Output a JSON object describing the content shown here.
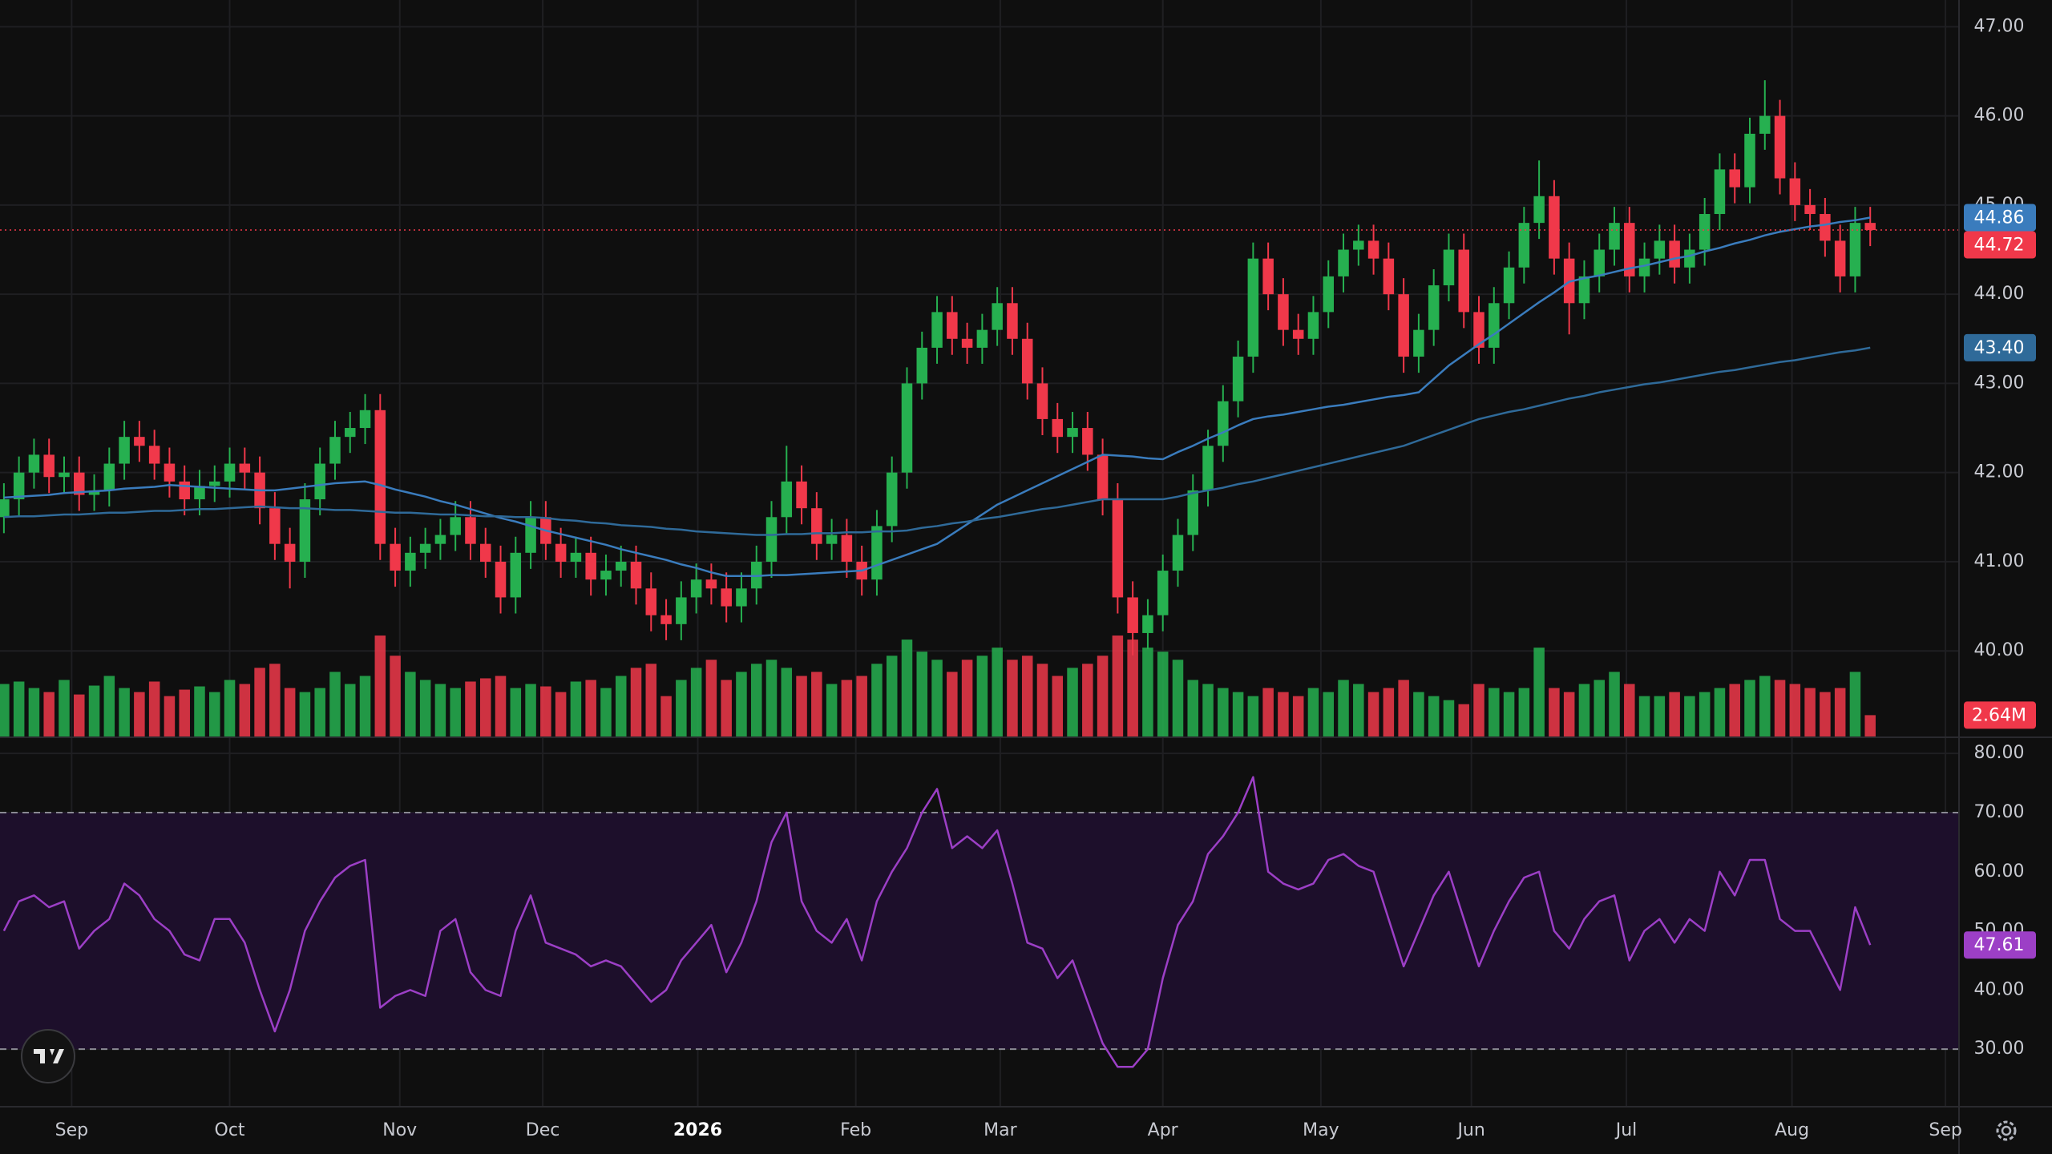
{
  "chart_data": [
    {
      "type": "candlestick",
      "up_color": "#26b050",
      "down_color": "#f0384a",
      "ylim": [
        39.04,
        47.3
      ],
      "yticks": [
        {
          "value": 40,
          "label": "40.00"
        },
        {
          "value": 41,
          "label": "41.00"
        },
        {
          "value": 42,
          "label": "42.00"
        },
        {
          "value": 43,
          "label": "43.00"
        },
        {
          "value": 44,
          "label": "44.00"
        },
        {
          "value": 45,
          "label": "45.00"
        },
        {
          "value": 46,
          "label": "46.00"
        },
        {
          "value": 47,
          "label": "47.00"
        }
      ],
      "grid": true,
      "last_label": "44.72",
      "open": [
        41.5,
        41.7,
        42,
        42.2,
        41.95,
        42,
        41.75,
        41.8,
        42.1,
        42.4,
        42.3,
        42.1,
        41.9,
        41.7,
        41.85,
        41.9,
        42.1,
        42,
        41.6,
        41.2,
        41,
        41.7,
        42.1,
        42.4,
        42.5,
        42.7,
        41.2,
        40.9,
        41.1,
        41.2,
        41.3,
        41.5,
        41.2,
        41,
        40.6,
        41.1,
        41.5,
        41.2,
        41,
        41.1,
        40.8,
        40.9,
        41,
        40.7,
        40.4,
        40.3,
        40.6,
        40.8,
        40.7,
        40.5,
        40.7,
        41,
        41.5,
        41.9,
        41.6,
        41.2,
        41.3,
        41,
        40.8,
        41.4,
        42,
        43,
        43.4,
        43.8,
        43.5,
        43.4,
        43.6,
        43.9,
        43.5,
        43,
        42.6,
        42.4,
        42.5,
        42.2,
        41.7,
        40.6,
        40.2,
        40.4,
        40.9,
        41.3,
        41.8,
        42.3,
        42.8,
        43.3,
        44.4,
        44,
        43.6,
        43.5,
        43.8,
        44.2,
        44.5,
        44.6,
        44.4,
        44,
        43.3,
        43.6,
        44.1,
        44.5,
        43.8,
        43.4,
        43.9,
        44.3,
        44.8,
        45.1,
        44.4,
        43.9,
        44.2,
        44.5,
        44.8,
        44.2,
        44.4,
        44.6,
        44.3,
        44.5,
        44.9,
        45.4,
        45.2,
        45.8,
        46,
        45.3,
        45,
        44.9,
        44.6,
        44.2,
        44.8
      ],
      "high": [
        41.88,
        42.18,
        42.38,
        42.38,
        42.18,
        42.18,
        41.98,
        42.28,
        42.58,
        42.58,
        42.48,
        42.28,
        42.08,
        42.03,
        42.08,
        42.28,
        42.28,
        42.18,
        41.78,
        41.38,
        41.88,
        42.28,
        42.58,
        42.68,
        42.88,
        42.88,
        41.38,
        41.28,
        41.38,
        41.48,
        41.68,
        41.68,
        41.38,
        41.18,
        41.28,
        41.68,
        41.68,
        41.38,
        41.28,
        41.28,
        41.08,
        41.18,
        41.18,
        40.88,
        40.58,
        40.78,
        40.98,
        40.98,
        40.88,
        40.88,
        41.18,
        41.68,
        42.3,
        42.08,
        41.78,
        41.48,
        41.48,
        41.18,
        41.58,
        42.18,
        43.18,
        43.58,
        43.98,
        43.98,
        43.68,
        43.78,
        44.08,
        44.08,
        43.68,
        43.18,
        42.78,
        42.68,
        42.68,
        42.38,
        41.88,
        40.78,
        40.58,
        41.08,
        41.48,
        41.98,
        42.48,
        42.98,
        43.48,
        44.58,
        44.58,
        44.18,
        43.78,
        43.98,
        44.38,
        44.68,
        44.78,
        44.78,
        44.58,
        44.18,
        43.78,
        44.28,
        44.68,
        44.68,
        43.98,
        44.08,
        44.48,
        44.98,
        45.5,
        45.28,
        44.58,
        44.38,
        44.68,
        44.98,
        44.98,
        44.58,
        44.78,
        44.78,
        44.68,
        45.08,
        45.58,
        45.58,
        45.98,
        46.4,
        46.18,
        45.48,
        45.18,
        45.08,
        44.78,
        44.98,
        44.98
      ],
      "low": [
        41.32,
        41.52,
        41.82,
        41.77,
        41.77,
        41.57,
        41.57,
        41.62,
        41.92,
        42.12,
        41.92,
        41.72,
        41.52,
        41.52,
        41.67,
        41.72,
        41.82,
        41.42,
        41.02,
        40.7,
        40.82,
        41.52,
        41.92,
        42.22,
        42.32,
        41.02,
        40.72,
        40.72,
        40.92,
        41.02,
        41.12,
        41.02,
        40.82,
        40.42,
        40.42,
        40.92,
        41.02,
        40.82,
        40.82,
        40.62,
        40.62,
        40.72,
        40.52,
        40.22,
        40.12,
        40.12,
        40.42,
        40.52,
        40.32,
        40.32,
        40.52,
        40.82,
        41.32,
        41.42,
        41.02,
        41.02,
        40.82,
        40.62,
        40.62,
        41.22,
        41.82,
        42.82,
        43.22,
        43.32,
        43.22,
        43.22,
        43.42,
        43.32,
        42.82,
        42.42,
        42.22,
        42.22,
        42.02,
        41.52,
        40.42,
        39.95,
        40.02,
        40.22,
        40.72,
        41.12,
        41.62,
        42.12,
        42.62,
        43.12,
        43.82,
        43.42,
        43.32,
        43.32,
        43.62,
        44.02,
        44.32,
        44.22,
        43.82,
        43.12,
        43.12,
        43.42,
        43.92,
        43.62,
        43.22,
        43.22,
        43.72,
        44.12,
        44.62,
        44.22,
        43.55,
        43.72,
        44.02,
        44.32,
        44.02,
        44.02,
        44.22,
        44.12,
        44.12,
        44.32,
        44.72,
        45.02,
        45.02,
        45.62,
        45.12,
        44.82,
        44.72,
        44.42,
        44.02,
        44.02,
        44.54
      ],
      "close": [
        41.7,
        42,
        42.2,
        41.95,
        42,
        41.75,
        41.8,
        42.1,
        42.4,
        42.3,
        42.1,
        41.9,
        41.7,
        41.85,
        41.9,
        42.1,
        42,
        41.6,
        41.2,
        41,
        41.7,
        42.1,
        42.4,
        42.5,
        42.7,
        41.2,
        40.9,
        41.1,
        41.2,
        41.3,
        41.5,
        41.2,
        41,
        40.6,
        41.1,
        41.5,
        41.2,
        41,
        41.1,
        40.8,
        40.9,
        41,
        40.7,
        40.4,
        40.3,
        40.6,
        40.8,
        40.7,
        40.5,
        40.7,
        41,
        41.5,
        41.9,
        41.6,
        41.2,
        41.3,
        41,
        40.8,
        41.4,
        42,
        43,
        43.4,
        43.8,
        43.5,
        43.4,
        43.6,
        43.9,
        43.5,
        43,
        42.6,
        42.4,
        42.5,
        42.2,
        41.7,
        40.6,
        40.2,
        40.4,
        40.9,
        41.3,
        41.8,
        42.3,
        42.8,
        43.3,
        44.4,
        44,
        43.6,
        43.5,
        43.8,
        44.2,
        44.5,
        44.6,
        44.4,
        44,
        43.3,
        43.6,
        44.1,
        44.5,
        43.8,
        43.4,
        43.9,
        44.3,
        44.8,
        45.1,
        44.4,
        43.9,
        44.2,
        44.5,
        44.8,
        44.2,
        44.4,
        44.6,
        44.3,
        44.5,
        44.9,
        45.4,
        45.2,
        45.8,
        46,
        45.3,
        45,
        44.9,
        44.6,
        44.2,
        44.8,
        44.72
      ],
      "series": [
        {
          "color": "#3a7cbd",
          "last_label": "44.86",
          "values": [
            41.72,
            41.73,
            41.74,
            41.75,
            41.77,
            41.78,
            41.79,
            41.8,
            41.82,
            41.83,
            41.84,
            41.86,
            41.85,
            41.84,
            41.83,
            41.82,
            41.81,
            41.8,
            41.8,
            41.82,
            41.84,
            41.86,
            41.88,
            41.89,
            41.9,
            41.86,
            41.81,
            41.77,
            41.73,
            41.68,
            41.64,
            41.59,
            41.54,
            41.49,
            41.45,
            41.4,
            41.35,
            41.31,
            41.27,
            41.23,
            41.19,
            41.14,
            41.1,
            41.06,
            41.02,
            40.97,
            40.93,
            40.88,
            40.84,
            40.84,
            40.84,
            40.85,
            40.85,
            40.86,
            40.87,
            40.88,
            40.89,
            40.9,
            40.96,
            41.02,
            41.08,
            41.14,
            41.2,
            41.31,
            41.42,
            41.53,
            41.64,
            41.72,
            41.8,
            41.88,
            41.96,
            42.04,
            42.12,
            42.2,
            42.19,
            42.18,
            42.16,
            42.15,
            42.23,
            42.3,
            42.38,
            42.45,
            42.53,
            42.6,
            42.63,
            42.65,
            42.68,
            42.71,
            42.74,
            42.76,
            42.79,
            42.82,
            42.85,
            42.87,
            42.9,
            43.05,
            43.2,
            43.32,
            43.44,
            43.55,
            43.67,
            43.79,
            43.91,
            44.02,
            44.14,
            44.18,
            44.21,
            44.25,
            44.29,
            44.32,
            44.36,
            44.4,
            44.43,
            44.48,
            44.52,
            44.57,
            44.61,
            44.66,
            44.7,
            44.73,
            44.76,
            44.78,
            44.81,
            44.83,
            44.86
          ]
        },
        {
          "color": "#2f6a99",
          "last_label": "43.40",
          "values": [
            41.5,
            41.51,
            41.51,
            41.52,
            41.53,
            41.53,
            41.54,
            41.55,
            41.55,
            41.56,
            41.57,
            41.57,
            41.58,
            41.59,
            41.59,
            41.6,
            41.61,
            41.62,
            41.61,
            41.6,
            41.6,
            41.59,
            41.58,
            41.58,
            41.57,
            41.56,
            41.55,
            41.55,
            41.54,
            41.53,
            41.53,
            41.52,
            41.51,
            41.51,
            41.5,
            41.5,
            41.49,
            41.47,
            41.46,
            41.44,
            41.43,
            41.41,
            41.4,
            41.39,
            41.37,
            41.36,
            41.34,
            41.33,
            41.32,
            41.31,
            41.3,
            41.3,
            41.31,
            41.31,
            41.32,
            41.32,
            41.33,
            41.33,
            41.34,
            41.34,
            41.35,
            41.38,
            41.4,
            41.43,
            41.45,
            41.48,
            41.5,
            41.53,
            41.56,
            41.59,
            41.61,
            41.64,
            41.67,
            41.7,
            41.7,
            41.7,
            41.7,
            41.7,
            41.73,
            41.77,
            41.8,
            41.83,
            41.87,
            41.9,
            41.94,
            41.98,
            42.02,
            42.06,
            42.1,
            42.14,
            42.18,
            42.22,
            42.26,
            42.3,
            42.36,
            42.42,
            42.48,
            42.54,
            42.6,
            42.64,
            42.68,
            42.71,
            42.75,
            42.79,
            42.83,
            42.86,
            42.9,
            42.93,
            42.96,
            42.99,
            43.01,
            43.04,
            43.07,
            43.1,
            43.13,
            43.15,
            43.18,
            43.21,
            43.24,
            43.26,
            43.29,
            43.32,
            43.35,
            43.37,
            43.4
          ]
        }
      ],
      "volume": {
        "vlim": [
          0,
          13
        ],
        "last_label": "2.64M",
        "values": [
          6.5,
          6.8,
          6,
          5.5,
          7,
          5.2,
          6.3,
          7.5,
          6,
          5.5,
          6.8,
          5,
          5.8,
          6.2,
          5.5,
          7,
          6.5,
          8.5,
          9,
          6,
          5.5,
          6,
          8,
          6.5,
          7.5,
          12.5,
          10,
          8,
          7,
          6.5,
          6,
          6.8,
          7.2,
          7.5,
          6,
          6.5,
          6.2,
          5.5,
          6.8,
          7,
          6,
          7.5,
          8.5,
          9,
          5,
          7,
          8.5,
          9.5,
          7,
          8,
          9,
          9.5,
          8.5,
          7.5,
          8,
          6.5,
          7,
          7.5,
          9,
          10,
          12,
          10.5,
          9.5,
          8,
          9.5,
          10,
          11,
          9.5,
          10,
          9,
          7.5,
          8.5,
          9,
          10,
          12.5,
          12,
          11,
          10.5,
          9.5,
          7,
          6.5,
          6,
          5.5,
          5,
          6,
          5.5,
          5,
          6,
          5.5,
          7,
          6.5,
          5.5,
          6,
          7,
          5.5,
          5,
          4.5,
          4,
          6.5,
          6,
          5.5,
          6,
          11,
          6,
          5.5,
          6.5,
          7,
          8,
          6.5,
          5,
          5,
          5.5,
          5,
          5.5,
          6,
          6.5,
          7,
          7.5,
          7,
          6.5,
          6,
          5.5,
          6,
          8,
          2.64
        ]
      }
    },
    {
      "type": "line",
      "color": "#9c3fc6",
      "band_color": "#1d0f2b",
      "bands": [
        30,
        70
      ],
      "ylim": [
        20.4,
        82.6
      ],
      "yticks": [
        {
          "value": 30,
          "label": "30.00"
        },
        {
          "value": 40,
          "label": "40.00"
        },
        {
          "value": 50,
          "label": "50.00"
        },
        {
          "value": 60,
          "label": "60.00"
        },
        {
          "value": 70,
          "label": "70.00"
        },
        {
          "value": 80,
          "label": "80.00"
        }
      ],
      "last_label": "47.61",
      "values": [
        50,
        55,
        56,
        54,
        55,
        47,
        50,
        52,
        58,
        56,
        52,
        50,
        46,
        45,
        52,
        52,
        48,
        40,
        33,
        40,
        50,
        55,
        59,
        61,
        62,
        37,
        39,
        40,
        39,
        50,
        52,
        43,
        40,
        39,
        50,
        56,
        48,
        47,
        46,
        44,
        45,
        44,
        41,
        38,
        40,
        45,
        48,
        51,
        43,
        48,
        55,
        65,
        70,
        55,
        50,
        48,
        52,
        45,
        55,
        60,
        64,
        70,
        74,
        64,
        66,
        64,
        67,
        58,
        48,
        47,
        42,
        45,
        38,
        31,
        27,
        27,
        30,
        42,
        51,
        55,
        63,
        66,
        70,
        76,
        60,
        58,
        57,
        58,
        62,
        63,
        61,
        60,
        52,
        44,
        50,
        56,
        60,
        52,
        44,
        50,
        55,
        59,
        60,
        50,
        47,
        52,
        55,
        56,
        45,
        50,
        52,
        48,
        52,
        50,
        60,
        56,
        62,
        62,
        52,
        50,
        50,
        45,
        40,
        54,
        47.61
      ],
      "xlim": [
        -0.26,
        129.9
      ],
      "xticks": [
        {
          "value": 4.5,
          "label": "Sep"
        },
        {
          "value": 15,
          "label": "Oct"
        },
        {
          "value": 26.3,
          "label": "Nov"
        },
        {
          "value": 35.8,
          "label": "Dec"
        },
        {
          "value": 46.1,
          "label": "2026"
        },
        {
          "value": 56.6,
          "label": "Feb"
        },
        {
          "value": 66.2,
          "label": "Mar"
        },
        {
          "value": 77,
          "label": "Apr"
        },
        {
          "value": 87.5,
          "label": "May"
        },
        {
          "value": 97.5,
          "label": "Jun"
        },
        {
          "value": 107.8,
          "label": "Jul"
        },
        {
          "value": 118.8,
          "label": "Aug"
        },
        {
          "value": 129,
          "label": "Sep"
        }
      ]
    }
  ]
}
